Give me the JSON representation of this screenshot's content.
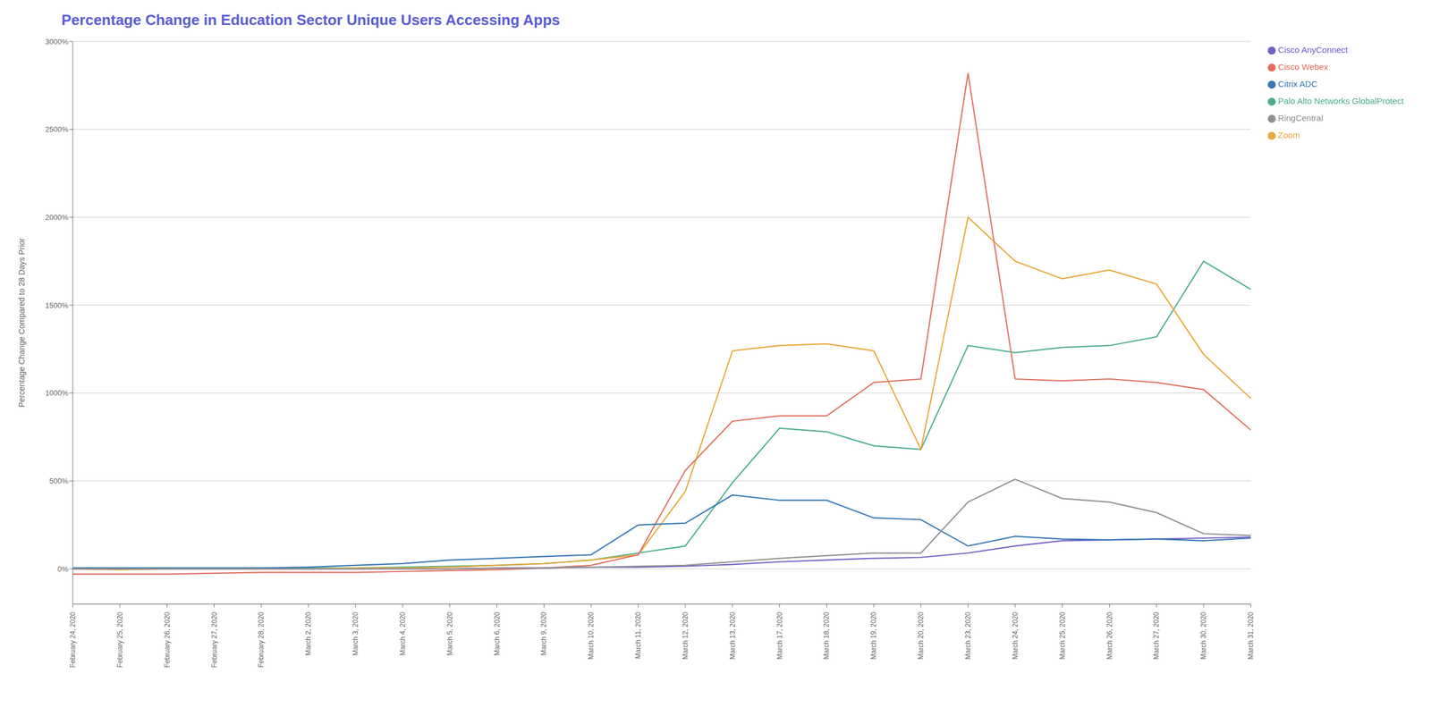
{
  "chart_data": {
    "type": "line",
    "title": "Percentage Change in Education Sector Unique Users Accessing Apps",
    "title_color": "#5b5bd6",
    "y_label": "Percentage Change Compared to 28 Days Prior",
    "categories": [
      "February 24, 2020",
      "February 25, 2020",
      "February 26, 2020",
      "February 27, 2020",
      "February 28, 2020",
      "March 2, 2020",
      "March 3, 2020",
      "March 4, 2020",
      "March 5, 2020",
      "March 6, 2020",
      "March 9, 2020",
      "March 10, 2020",
      "March 11, 2020",
      "March 12, 2020",
      "March 13, 2020",
      "March 17, 2020",
      "March 18, 2020",
      "March 19, 2020",
      "March 20, 2020",
      "March 23, 2020",
      "March 24, 2020",
      "March 25, 2020",
      "March 26, 2020",
      "March 27, 2020",
      "March 30, 2020",
      "March 31, 2020"
    ],
    "series": [
      {
        "name": "Palo Alto Networks GlobalProtect",
        "color": "#4caf8a",
        "values": [
          5,
          5,
          5,
          5,
          5,
          5,
          5,
          10,
          15,
          20,
          30,
          50,
          90,
          130,
          490,
          800,
          780,
          700,
          680,
          1270,
          1230,
          1260,
          1270,
          1320,
          1750,
          1590
        ]
      },
      {
        "name": "Zoom",
        "color": "#e8a838",
        "values": [
          0,
          -5,
          0,
          0,
          0,
          0,
          5,
          5,
          10,
          20,
          30,
          50,
          80,
          440,
          1240,
          1270,
          1280,
          1240,
          680,
          2000,
          1750,
          1650,
          1700,
          1620,
          1220,
          970
        ]
      },
      {
        "name": "Cisco Webex",
        "color": "#e07060",
        "values": [
          -30,
          -30,
          -30,
          -25,
          -20,
          -20,
          -20,
          -15,
          -10,
          -5,
          5,
          20,
          80,
          560,
          840,
          870,
          870,
          1060,
          1080,
          2820,
          1080,
          1070,
          1080,
          1060,
          1020,
          790
        ]
      },
      {
        "name": "Cisco AnyConnect",
        "color": "#7060c8",
        "values": [
          0,
          0,
          0,
          0,
          0,
          0,
          0,
          0,
          0,
          5,
          5,
          10,
          10,
          15,
          25,
          40,
          50,
          60,
          65,
          90,
          130,
          160,
          165,
          170,
          175,
          180
        ]
      },
      {
        "name": "Citrix ADC",
        "color": "#3478b5",
        "values": [
          5,
          5,
          5,
          5,
          5,
          10,
          20,
          30,
          50,
          60,
          70,
          80,
          250,
          260,
          420,
          390,
          390,
          290,
          280,
          130,
          185,
          170,
          165,
          170,
          160,
          175
        ]
      },
      {
        "name": "RingCentral",
        "color": "#909090",
        "values": [
          0,
          0,
          0,
          0,
          0,
          0,
          0,
          0,
          0,
          5,
          5,
          10,
          15,
          20,
          40,
          60,
          75,
          90,
          90,
          380,
          510,
          400,
          380,
          320,
          200,
          190
        ]
      }
    ],
    "ylim": [
      -200,
      3000
    ],
    "yticks": [
      {
        "value": 0,
        "label": "0%"
      },
      {
        "value": 500,
        "label": "500%"
      },
      {
        "value": 1000,
        "label": "1000%"
      },
      {
        "value": 1500,
        "label": "1500%"
      },
      {
        "value": 2000,
        "label": "2000%"
      },
      {
        "value": 2500,
        "label": "2500%"
      },
      {
        "value": 3000,
        "label": "3000%"
      }
    ],
    "grid": true,
    "legend": "right"
  }
}
